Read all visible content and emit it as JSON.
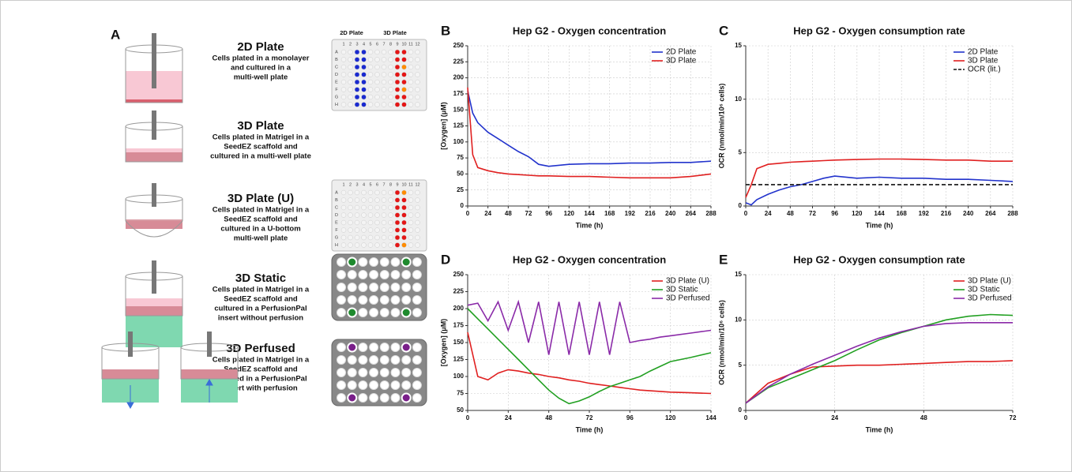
{
  "panel_a": {
    "label": "A",
    "conditions": [
      {
        "title": "2D Plate",
        "lines": [
          "Cells plated in a monolayer",
          "and cultured in a",
          "multi-well plate"
        ]
      },
      {
        "title": "3D Plate",
        "lines": [
          "Cells plated in Matrigel in a",
          "SeedEZ scaffold and",
          "cultured in a multi-well plate"
        ]
      },
      {
        "title": "3D Plate (U)",
        "lines": [
          "Cells plated in Matrigel in a",
          "SeedEZ scaffold and",
          "cultured in a U-bottom",
          "multi-well plate"
        ]
      },
      {
        "title": "3D Static",
        "lines": [
          "Cells plated in Matrigel in a",
          "SeedEZ scaffold and",
          "cultured in a PerfusionPal",
          "insert without perfusion"
        ]
      },
      {
        "title": "3D Perfused",
        "lines": [
          "Cells plated in Matrigel in a",
          "SeedEZ scaffold and",
          "cultured in a PerfusionPal",
          "insert with perfusion"
        ]
      }
    ],
    "plate_headers": [
      "2D Plate",
      "3D Plate"
    ],
    "plate_columns": [
      "1",
      "2",
      "3",
      "4",
      "5",
      "6",
      "7",
      "8",
      "9",
      "10",
      "11",
      "12"
    ],
    "plate_rows": [
      "A",
      "B",
      "C",
      "D",
      "E",
      "F",
      "G",
      "H"
    ]
  },
  "chart_data": [
    {
      "type": "line",
      "panel_label": "B",
      "title": "Hep G2 - Oxygen concentration",
      "x_label": "Time (h)",
      "y_label": "[Oxygen] (μM)",
      "x": [
        0,
        6,
        12,
        24,
        36,
        48,
        60,
        72,
        84,
        96,
        120,
        144,
        168,
        192,
        216,
        240,
        264,
        288
      ],
      "series": [
        {
          "name": "2D Plate",
          "color": "#2233cc",
          "values": [
            180,
            145,
            130,
            115,
            105,
            95,
            85,
            77,
            65,
            62,
            65,
            66,
            66,
            67,
            67,
            68,
            68,
            70
          ]
        },
        {
          "name": "3D Plate",
          "color": "#e02020",
          "values": [
            185,
            80,
            60,
            55,
            52,
            50,
            49,
            48,
            47,
            47,
            46,
            46,
            45,
            44,
            44,
            44,
            46,
            50
          ]
        }
      ],
      "xlim": [
        0,
        288
      ],
      "ylim": [
        0,
        250
      ],
      "xticks": [
        0,
        24,
        48,
        72,
        96,
        120,
        144,
        168,
        192,
        216,
        240,
        264,
        288
      ],
      "yticks": [
        0,
        25,
        50,
        75,
        100,
        125,
        150,
        175,
        200,
        225,
        250
      ],
      "grid": true,
      "legend": "upper right"
    },
    {
      "type": "line",
      "panel_label": "C",
      "title": "Hep G2 - Oxygen consumption rate",
      "x_label": "Time (h)",
      "y_label": "OCR (nmol/min/10⁶ cells)",
      "x": [
        0,
        6,
        12,
        24,
        36,
        48,
        60,
        72,
        84,
        96,
        120,
        144,
        168,
        192,
        216,
        240,
        264,
        288
      ],
      "series": [
        {
          "name": "2D Plate",
          "color": "#2233cc",
          "values": [
            0.3,
            0.1,
            0.6,
            1.1,
            1.5,
            1.8,
            2.0,
            2.3,
            2.6,
            2.8,
            2.6,
            2.7,
            2.6,
            2.6,
            2.5,
            2.5,
            2.4,
            2.3
          ]
        },
        {
          "name": "3D Plate",
          "color": "#e02020",
          "values": [
            0.8,
            2,
            3.5,
            3.9,
            4.0,
            4.1,
            4.15,
            4.2,
            4.25,
            4.3,
            4.35,
            4.4,
            4.4,
            4.35,
            4.3,
            4.3,
            4.2,
            4.2
          ]
        },
        {
          "name": "OCR (lit.)",
          "color": "#111111",
          "dashed": true,
          "values": [
            2,
            2,
            2,
            2,
            2,
            2,
            2,
            2,
            2,
            2,
            2,
            2,
            2,
            2,
            2,
            2,
            2,
            2
          ]
        }
      ],
      "xlim": [
        0,
        288
      ],
      "ylim": [
        0,
        15
      ],
      "xticks": [
        0,
        24,
        48,
        72,
        96,
        120,
        144,
        168,
        192,
        216,
        240,
        264,
        288
      ],
      "yticks": [
        0,
        5,
        10,
        15
      ],
      "grid": true,
      "legend": "upper right"
    },
    {
      "type": "line",
      "panel_label": "D",
      "title": "Hep G2 - Oxygen concentration",
      "x_label": "Time (h)",
      "y_label": "[Oxygen] (μM)",
      "x": [
        0,
        6,
        12,
        18,
        24,
        30,
        36,
        42,
        48,
        54,
        60,
        66,
        72,
        78,
        84,
        90,
        96,
        102,
        108,
        114,
        120,
        132,
        144
      ],
      "series": [
        {
          "name": "3D Plate (U)",
          "color": "#e02020",
          "values": [
            165,
            100,
            95,
            105,
            110,
            108,
            105,
            103,
            100,
            98,
            95,
            93,
            90,
            88,
            86,
            84,
            82,
            80,
            79,
            78,
            77,
            76,
            75
          ]
        },
        {
          "name": "3D Static",
          "color": "#22a022",
          "values": [
            200,
            185,
            170,
            155,
            140,
            125,
            110,
            95,
            80,
            68,
            60,
            64,
            70,
            78,
            85,
            90,
            95,
            100,
            108,
            115,
            122,
            128,
            135
          ]
        },
        {
          "name": "3D Perfused",
          "color": "#8a2aa8",
          "values": [
            205,
            208,
            182,
            210,
            168,
            210,
            150,
            210,
            132,
            210,
            132,
            210,
            132,
            210,
            132,
            210,
            150,
            153,
            155,
            158,
            160,
            164,
            168
          ]
        }
      ],
      "xlim": [
        0,
        144
      ],
      "ylim": [
        50,
        250
      ],
      "xticks": [
        0,
        24,
        48,
        72,
        96,
        120,
        144
      ],
      "yticks": [
        50,
        75,
        100,
        125,
        150,
        175,
        200,
        225,
        250
      ],
      "grid": true,
      "legend": "upper right"
    },
    {
      "type": "line",
      "panel_label": "E",
      "title": "Hep G2 - Oxygen consumption rate",
      "x_label": "Time (h)",
      "y_label": "OCR (nmol/min/10⁶ cells)",
      "x": [
        0,
        6,
        12,
        18,
        24,
        30,
        36,
        42,
        48,
        54,
        60,
        66,
        72
      ],
      "series": [
        {
          "name": "3D Plate (U)",
          "color": "#e02020",
          "values": [
            0.8,
            3,
            4,
            4.8,
            4.9,
            5,
            5,
            5.1,
            5.2,
            5.3,
            5.4,
            5.4,
            5.5
          ]
        },
        {
          "name": "3D Static",
          "color": "#22a022",
          "values": [
            0.8,
            2.5,
            3.5,
            4.5,
            5.5,
            6.7,
            7.8,
            8.6,
            9.3,
            10,
            10.4,
            10.6,
            10.5
          ]
        },
        {
          "name": "3D Perfused",
          "color": "#8a2aa8",
          "values": [
            0.8,
            2.6,
            4,
            5.1,
            6.1,
            7.1,
            8,
            8.7,
            9.3,
            9.6,
            9.7,
            9.7,
            9.7
          ]
        }
      ],
      "xlim": [
        0,
        72
      ],
      "ylim": [
        0,
        15
      ],
      "xticks": [
        0,
        24,
        48,
        72
      ],
      "yticks": [
        0,
        5,
        10,
        15
      ],
      "grid": true,
      "legend": "upper right"
    }
  ]
}
